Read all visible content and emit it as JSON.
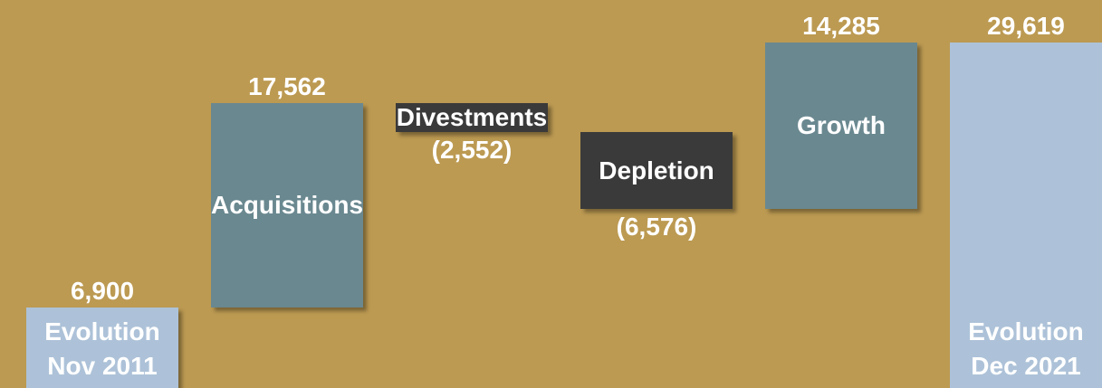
{
  "chart_data": {
    "type": "waterfall",
    "categories": [
      "Evolution Nov 2011",
      "Acquisitions",
      "Divestments",
      "Depletion",
      "Growth",
      "Evolution Dec 2021"
    ],
    "measures": [
      "absolute",
      "relative",
      "relative",
      "relative",
      "relative",
      "total"
    ],
    "values": [
      6900,
      17562,
      -2552,
      -6576,
      14285,
      29619
    ],
    "value_labels": [
      "6,900",
      "17,562",
      "(2,552)",
      "(6,576)",
      "14,285",
      "29,619"
    ],
    "colors": {
      "total": "#adc2d8",
      "increase": "#6a8890",
      "decrease": "#3a3a3a"
    },
    "background": "#bc9a52"
  }
}
